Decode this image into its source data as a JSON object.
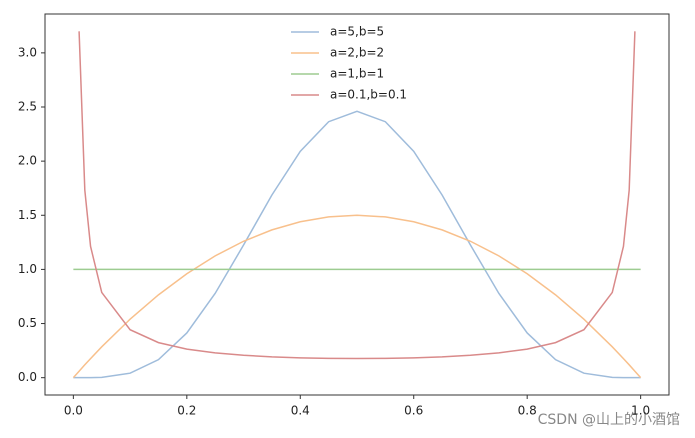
{
  "chart_data": {
    "type": "line",
    "x": [
      0,
      0.0101,
      0.0202,
      0.0303,
      0.05,
      0.1,
      0.15,
      0.2,
      0.25,
      0.3,
      0.35,
      0.4,
      0.45,
      0.5,
      0.55,
      0.6,
      0.65,
      0.7,
      0.75,
      0.8,
      0.85,
      0.9,
      0.95,
      0.9697,
      0.9798,
      0.9899,
      1
    ],
    "series": [
      {
        "name": "a=5,b=5",
        "color": "#9fbcdb",
        "values": [
          0,
          0,
          0.0001,
          0.0005,
          0.0032,
          0.0413,
          0.1665,
          0.4129,
          0.7787,
          1.2252,
          1.6876,
          2.0902,
          2.364,
          2.4609,
          2.364,
          2.0902,
          1.6876,
          1.2252,
          0.7787,
          0.4129,
          0.1665,
          0.0413,
          0.0032,
          0.0005,
          0.0001,
          0,
          0
        ]
      },
      {
        "name": "a=2,b=2",
        "color": "#f8c08c",
        "values": [
          0,
          0.0594,
          0.1188,
          0.1763,
          0.285,
          0.54,
          0.765,
          0.96,
          1.125,
          1.26,
          1.365,
          1.44,
          1.485,
          1.5,
          1.485,
          1.44,
          1.365,
          1.26,
          1.125,
          0.96,
          0.765,
          0.54,
          0.285,
          0.1763,
          0.1188,
          0.0594,
          0
        ]
      },
      {
        "name": "a=1,b=1",
        "color": "#9dcc91",
        "values": [
          1,
          1,
          1,
          1,
          1,
          1,
          1,
          1,
          1,
          1,
          1,
          1,
          1,
          1,
          1,
          1,
          1,
          1,
          1,
          1,
          1,
          1,
          1,
          1,
          1,
          1,
          1
        ]
      },
      {
        "name": "a=0.1,b=0.1",
        "color": "#d98a8a",
        "values": [
          null,
          3.199,
          1.731,
          1.213,
          0.787,
          0.443,
          0.324,
          0.264,
          0.229,
          0.207,
          0.192,
          0.183,
          0.178,
          0.177,
          0.178,
          0.183,
          0.192,
          0.207,
          0.229,
          0.264,
          0.324,
          0.443,
          0.787,
          1.213,
          1.731,
          3.199,
          null
        ]
      }
    ],
    "xlim": [
      -0.05,
      1.05
    ],
    "ylim": [
      -0.16,
      3.359
    ],
    "xticks": [
      {
        "value": 0,
        "label": "0.0"
      },
      {
        "value": 0.2,
        "label": "0.2"
      },
      {
        "value": 0.4,
        "label": "0.4"
      },
      {
        "value": 0.6,
        "label": "0.6"
      },
      {
        "value": 0.8,
        "label": "0.8"
      },
      {
        "value": 1,
        "label": "1.0"
      }
    ],
    "yticks": [
      {
        "value": 0,
        "label": "0.0"
      },
      {
        "value": 0.5,
        "label": "0.5"
      },
      {
        "value": 1,
        "label": "1.0"
      },
      {
        "value": 1.5,
        "label": "1.5"
      },
      {
        "value": 2,
        "label": "2.0"
      },
      {
        "value": 2.5,
        "label": "2.5"
      },
      {
        "value": 3,
        "label": "3.0"
      }
    ],
    "legend": "upper center",
    "watermark": "CSDN @山上的小酒馆"
  }
}
